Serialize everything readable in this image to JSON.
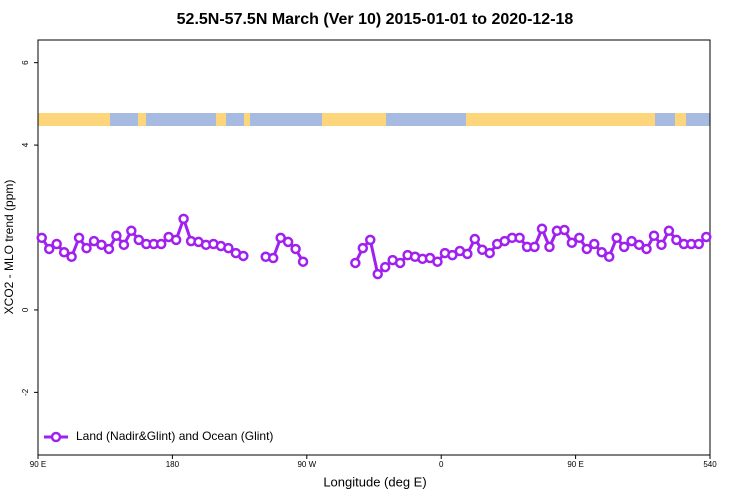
{
  "chart_data": {
    "type": "line",
    "title": "52.5N-57.5N March (Ver 10)   2015-01-01 to 2020-12-18",
    "x_label": "Longitude (deg E)",
    "y_label": "XCO2 - MLO trend (ppm)",
    "x": [
      92.5,
      97.5,
      102.5,
      107.5,
      112.5,
      117.5,
      122.5,
      127.5,
      132.5,
      137.5,
      142.5,
      147.5,
      152.5,
      157.5,
      162.5,
      167.5,
      172.5,
      177.5,
      182.5,
      187.5,
      192.5,
      197.5,
      202.5,
      207.5,
      212.5,
      217.5,
      222.5,
      227.5,
      232.5,
      237.5,
      242.5,
      247.5,
      252.5,
      257.5,
      262.5,
      267.5,
      272.5,
      277.5,
      282.5,
      287.5,
      292.5,
      297.5,
      302.5,
      307.5,
      312.5,
      317.5,
      322.5,
      327.5,
      332.5,
      337.5,
      342.5,
      347.5,
      352.5,
      357.5,
      362.5,
      367.5,
      372.5,
      377.5,
      382.5,
      387.5,
      392.5,
      397.5,
      402.5,
      407.5,
      412.5,
      417.5,
      422.5,
      427.5,
      432.5,
      437.5,
      442.5,
      447.5,
      452.5,
      457.5,
      462.5,
      467.5,
      472.5,
      477.5,
      482.5,
      487.5,
      492.5,
      497.5,
      502.5,
      507.5,
      512.5,
      517.5,
      522.5,
      527.5,
      532.5,
      537.5
    ],
    "series": [
      {
        "name": "Land (Nadir&Glint) and Ocean (Glint)",
        "color": "#a020f0",
        "values": [
          1.75,
          1.48,
          1.6,
          1.4,
          1.29,
          1.75,
          1.5,
          1.67,
          1.58,
          1.48,
          1.8,
          1.58,
          1.92,
          1.7,
          1.6,
          1.6,
          1.6,
          1.77,
          1.7,
          2.21,
          1.67,
          1.65,
          1.58,
          1.6,
          1.55,
          1.5,
          1.38,
          1.31,
          null,
          null,
          1.29,
          1.26,
          1.75,
          1.65,
          1.48,
          1.17,
          null,
          null,
          null,
          null,
          null,
          null,
          1.14,
          1.5,
          1.7,
          0.87,
          1.04,
          1.21,
          1.14,
          1.33,
          1.29,
          1.24,
          1.26,
          1.17,
          1.38,
          1.33,
          1.43,
          1.36,
          1.72,
          1.46,
          1.38,
          1.6,
          1.67,
          1.75,
          1.75,
          1.53,
          1.53,
          1.97,
          1.53,
          1.92,
          1.94,
          1.63,
          1.75,
          1.48,
          1.6,
          1.4,
          1.29,
          1.75,
          1.53,
          1.67,
          1.58,
          1.48,
          1.8,
          1.58,
          1.92,
          1.7,
          1.6,
          1.6,
          1.6,
          1.77
        ]
      }
    ],
    "xlim": [
      90,
      540
    ],
    "xticks": [
      {
        "value": 90,
        "label": "90 E"
      },
      180,
      {
        "value": 270,
        "label": "90 W"
      },
      {
        "value": 360,
        "label": "0"
      },
      {
        "value": 450,
        "label": "90 E"
      },
      540
    ],
    "ylim": [
      -3.52,
      6.55
    ],
    "yticks": [
      -2,
      0,
      4,
      6
    ],
    "legend": "bottomleft"
  }
}
